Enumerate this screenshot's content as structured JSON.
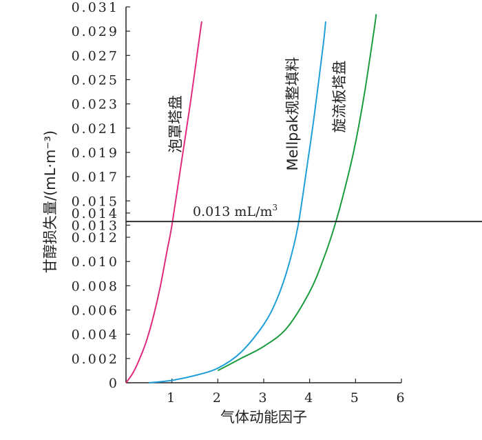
{
  "chart_data": {
    "type": "line",
    "xlabel": "气体动能因子",
    "ylabel": "甘醇损失量/(mL·m⁻³)",
    "xlim": [
      0,
      6
    ],
    "ylim": [
      0,
      0.031
    ],
    "x_ticks": [
      "0",
      "1",
      "2",
      "3",
      "4",
      "5",
      "6"
    ],
    "y_ticks": [
      "0",
      "0.002",
      "0.004",
      "0.006",
      "0.008",
      "0.010",
      "0.012",
      "0.013",
      "0.014",
      "0.015",
      "0.017",
      "0.019",
      "0.021",
      "0.023",
      "0.025",
      "0.027",
      "0.029",
      "0.031"
    ],
    "grid": false,
    "series": [
      {
        "name": "泡罩塔盘",
        "color": "#e0287f",
        "x": [
          0.0,
          0.15,
          0.3,
          0.45,
          0.6,
          0.75,
          0.9,
          1.0,
          1.2,
          1.4,
          1.6,
          1.65
        ],
        "y": [
          0.0,
          0.0008,
          0.002,
          0.0035,
          0.0055,
          0.008,
          0.011,
          0.013,
          0.018,
          0.023,
          0.0285,
          0.0298
        ]
      },
      {
        "name": "Mellpak规整填料",
        "color": "#1e9fd8",
        "x": [
          0.5,
          1.0,
          1.5,
          2.0,
          2.5,
          3.0,
          3.3,
          3.55,
          3.75,
          3.95,
          4.1,
          4.3,
          4.35
        ],
        "y": [
          0.0,
          0.0002,
          0.0006,
          0.0012,
          0.0025,
          0.0048,
          0.007,
          0.0098,
          0.013,
          0.018,
          0.022,
          0.028,
          0.0298
        ]
      },
      {
        "name": "旋流板塔盘",
        "color": "#1a9b3c",
        "x": [
          2.0,
          2.5,
          3.0,
          3.5,
          4.0,
          4.3,
          4.55,
          4.8,
          5.0,
          5.2,
          5.4,
          5.45
        ],
        "y": [
          0.001,
          0.002,
          0.003,
          0.0045,
          0.0075,
          0.0102,
          0.013,
          0.0165,
          0.0198,
          0.024,
          0.029,
          0.0304
        ]
      }
    ],
    "reference_line": {
      "y": 0.0133,
      "label": "0.013 mL/m",
      "label_sup": "3",
      "color": "#000000"
    }
  }
}
